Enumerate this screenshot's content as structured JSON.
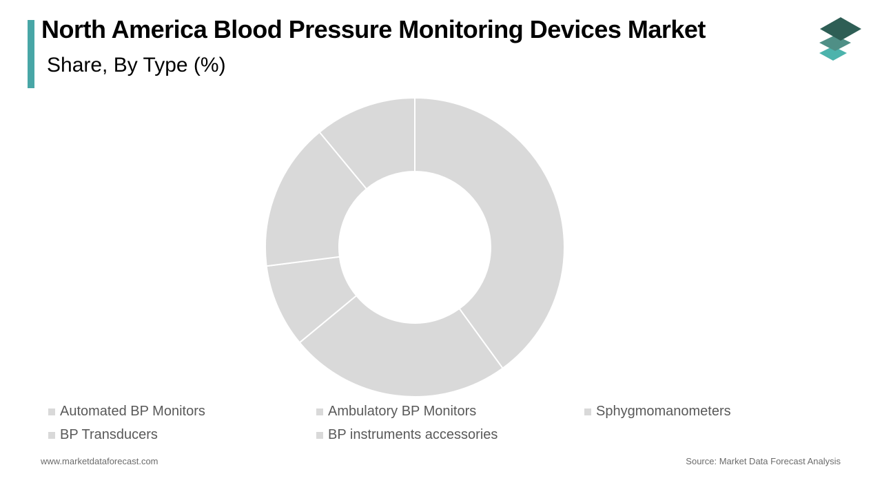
{
  "header": {
    "title": "North America Blood Pressure Monitoring Devices Market",
    "subtitle": "Share, By Type (%)"
  },
  "colors": {
    "accent": "#48a6a6",
    "slice": "#d9d9d9",
    "swatch": "#d9d9d9",
    "slice_border": "#ffffff",
    "logo_dark": "#2e5e55",
    "logo_mid": "#4f8f86",
    "logo_light": "#4cb3ac"
  },
  "chart_data": {
    "type": "pie",
    "donut": true,
    "categories": [
      "Automated BP Monitors",
      "Ambulatory BP Monitors",
      "Sphygmomanometers",
      "BP Transducers",
      "BP instruments accessories"
    ],
    "values": [
      40,
      24,
      9,
      16,
      11
    ],
    "title": "North America Blood Pressure Monitoring Devices Market",
    "subtitle": "Share, By Type (%)",
    "legend_position": "bottom"
  },
  "footer": {
    "website": "www.marketdataforecast.com",
    "source": "Source: Market Data Forecast Analysis"
  }
}
